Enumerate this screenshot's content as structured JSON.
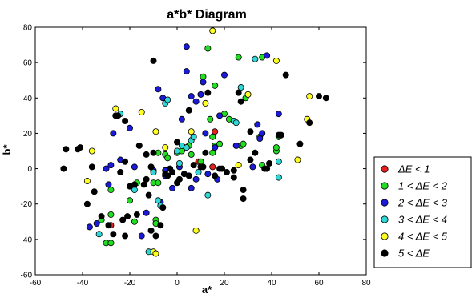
{
  "chart_data": {
    "type": "scatter",
    "title": "a*b* Diagram",
    "xlabel": "a*",
    "ylabel": "b*",
    "xlim": [
      -60,
      80
    ],
    "ylim": [
      -60,
      80
    ],
    "xticks": [
      "-60",
      "-40",
      "-20",
      "0",
      "20",
      "40",
      "60",
      "80"
    ],
    "yticks": [
      "-60",
      "-40",
      "-20",
      "0",
      "20",
      "40",
      "60",
      "80"
    ],
    "grid": false,
    "legend_position": "right",
    "series": [
      {
        "name": "ΔE < 1",
        "color": "#e52020",
        "points": [
          [
            -28,
            -32
          ],
          [
            9,
            4
          ],
          [
            15,
            1
          ],
          [
            16,
            21
          ]
        ]
      },
      {
        "name": "1 < ΔE < 2",
        "color": "#22dd22",
        "points": [
          [
            -32,
            -29
          ],
          [
            -30,
            -42
          ],
          [
            -28,
            -42
          ],
          [
            -18,
            -30
          ],
          [
            -9,
            -29
          ],
          [
            -9,
            -31
          ],
          [
            -20,
            -18
          ],
          [
            -17,
            -8
          ],
          [
            -10,
            -8
          ],
          [
            -8,
            -8
          ],
          [
            -5,
            8
          ],
          [
            0,
            9
          ],
          [
            3,
            12
          ],
          [
            5,
            13
          ],
          [
            6,
            8
          ],
          [
            10,
            4
          ],
          [
            15,
            9
          ],
          [
            15,
            18
          ],
          [
            16,
            13
          ],
          [
            13,
            68
          ],
          [
            16,
            47
          ],
          [
            18,
            14
          ],
          [
            20,
            31
          ],
          [
            22,
            28
          ],
          [
            26,
            63
          ],
          [
            27,
            13
          ],
          [
            28,
            14
          ],
          [
            29,
            40
          ],
          [
            35,
            18
          ],
          [
            36,
            63
          ],
          [
            36,
            2
          ],
          [
            42,
            10
          ],
          [
            42,
            12
          ],
          [
            43,
            18
          ],
          [
            -28,
            -12
          ],
          [
            -28,
            -26
          ],
          [
            -8,
            9
          ],
          [
            -4,
            6
          ],
          [
            2,
            10
          ],
          [
            11,
            52
          ],
          [
            14,
            28
          ]
        ]
      },
      {
        "name": "2 < ΔE < 3",
        "color": "#1a1ad8",
        "points": [
          [
            -37,
            -33
          ],
          [
            -34,
            -31
          ],
          [
            -29,
            -9
          ],
          [
            -28,
            2
          ],
          [
            -27,
            20
          ],
          [
            -24,
            5
          ],
          [
            -20,
            23
          ],
          [
            -15,
            -38
          ],
          [
            -13,
            -25
          ],
          [
            -10,
            -1
          ],
          [
            -7,
            -19
          ],
          [
            -8,
            45
          ],
          [
            -6,
            40
          ],
          [
            -5,
            -1
          ],
          [
            -2,
            -11
          ],
          [
            1,
            1
          ],
          [
            2,
            28
          ],
          [
            4,
            55
          ],
          [
            4,
            69
          ],
          [
            6,
            -11
          ],
          [
            6,
            41
          ],
          [
            8,
            38
          ],
          [
            8,
            -6
          ],
          [
            10,
            42
          ],
          [
            11,
            49
          ],
          [
            12,
            20
          ],
          [
            13,
            -3
          ],
          [
            16,
            12
          ],
          [
            17,
            -6
          ],
          [
            18,
            30
          ],
          [
            20,
            53
          ],
          [
            25,
            13
          ],
          [
            32,
            1
          ],
          [
            34,
            25
          ],
          [
            35,
            17
          ],
          [
            36,
            20
          ],
          [
            38,
            64
          ],
          [
            43,
            31
          ],
          [
            -30,
            0
          ],
          [
            -18,
            1
          ],
          [
            -5,
            -4
          ]
        ]
      },
      {
        "name": "3 < ΔE < 4",
        "color": "#2fd8d8",
        "points": [
          [
            -33,
            -37
          ],
          [
            -24,
            31
          ],
          [
            -18,
            -12
          ],
          [
            -12,
            -47
          ],
          [
            -8,
            -18
          ],
          [
            -7,
            -21
          ],
          [
            -5,
            37
          ],
          [
            -4,
            39
          ],
          [
            0,
            10
          ],
          [
            2,
            13
          ],
          [
            4,
            12
          ],
          [
            6,
            16
          ],
          [
            7,
            18
          ],
          [
            9,
            -2
          ],
          [
            13,
            -15
          ],
          [
            24,
            27
          ],
          [
            25,
            26
          ],
          [
            27,
            46
          ],
          [
            33,
            62
          ],
          [
            43,
            4
          ],
          [
            43,
            -5
          ],
          [
            -10,
            -2
          ],
          [
            1,
            3
          ]
        ]
      },
      {
        "name": "4 < ΔE < 5",
        "color": "#ffff22",
        "points": [
          [
            -38,
            -7
          ],
          [
            -36,
            10
          ],
          [
            -26,
            34
          ],
          [
            -15,
            32
          ],
          [
            -10,
            -47
          ],
          [
            -9,
            21
          ],
          [
            -9,
            -48
          ],
          [
            -5,
            12
          ],
          [
            6,
            21
          ],
          [
            8,
            -35
          ],
          [
            12,
            37
          ],
          [
            15,
            78
          ],
          [
            26,
            2
          ],
          [
            30,
            42
          ],
          [
            42,
            61
          ],
          [
            51,
            5
          ],
          [
            55,
            28
          ],
          [
            56,
            41
          ]
        ]
      },
      {
        "name": "5 < ΔE",
        "color": "#000000",
        "points": [
          [
            -47,
            11
          ],
          [
            -48,
            0
          ],
          [
            -41,
            12
          ],
          [
            -42,
            11
          ],
          [
            -38,
            -20
          ],
          [
            -36,
            1
          ],
          [
            -35,
            -13
          ],
          [
            -32,
            -27
          ],
          [
            -29,
            -32
          ],
          [
            -27,
            -37
          ],
          [
            -26,
            30
          ],
          [
            -24,
            -2
          ],
          [
            -23,
            -29
          ],
          [
            -22,
            -38
          ],
          [
            -22,
            4
          ],
          [
            -21,
            -27
          ],
          [
            -20,
            -10
          ],
          [
            -18,
            -9
          ],
          [
            -17,
            -26
          ],
          [
            -16,
            13
          ],
          [
            -14,
            -9
          ],
          [
            -13,
            -6
          ],
          [
            -13,
            8
          ],
          [
            -12,
            -15
          ],
          [
            -11,
            -35
          ],
          [
            -11,
            1
          ],
          [
            -10,
            9
          ],
          [
            -10,
            61
          ],
          [
            -9,
            -38
          ],
          [
            -7,
            -32
          ],
          [
            -6,
            -22
          ],
          [
            -5,
            -3
          ],
          [
            -4,
            -4
          ],
          [
            -3,
            0
          ],
          [
            -2,
            -2
          ],
          [
            0,
            15
          ],
          [
            0,
            -8
          ],
          [
            1,
            -6
          ],
          [
            3,
            -3
          ],
          [
            5,
            33
          ],
          [
            5,
            -4
          ],
          [
            7,
            2
          ],
          [
            10,
            1
          ],
          [
            11,
            1
          ],
          [
            12,
            9
          ],
          [
            13,
            43
          ],
          [
            16,
            -4
          ],
          [
            18,
            0
          ],
          [
            19,
            0
          ],
          [
            21,
            -2
          ],
          [
            24,
            -1
          ],
          [
            24,
            -5
          ],
          [
            26,
            43
          ],
          [
            27,
            38
          ],
          [
            28,
            -12
          ],
          [
            28,
            -17
          ],
          [
            31,
            5
          ],
          [
            33,
            9
          ],
          [
            37,
            0
          ],
          [
            39,
            3
          ],
          [
            43,
            19
          ],
          [
            44,
            19
          ],
          [
            46,
            53
          ],
          [
            52,
            14
          ],
          [
            56,
            26
          ],
          [
            60,
            41
          ],
          [
            63,
            40
          ],
          [
            -25,
            30
          ],
          [
            -22,
            27
          ],
          [
            31,
            21
          ],
          [
            38,
            0
          ]
        ]
      }
    ]
  }
}
